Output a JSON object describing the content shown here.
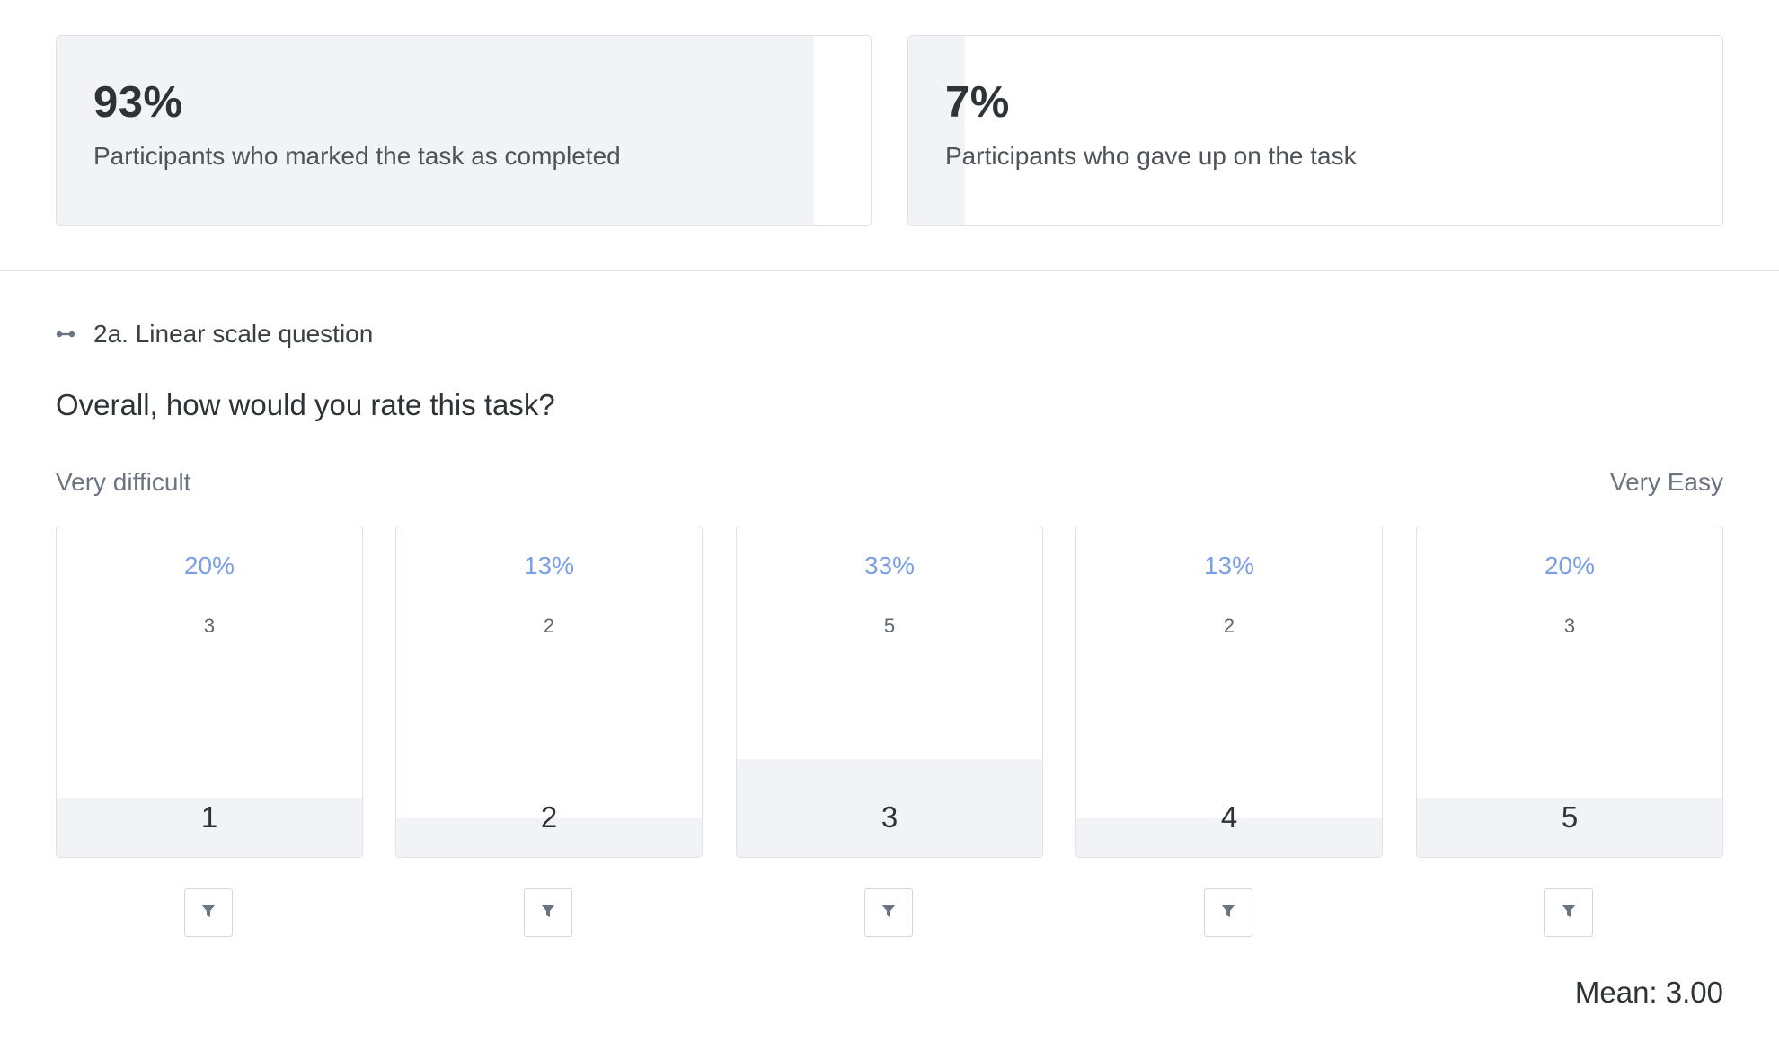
{
  "task_stats": [
    {
      "value": "93%",
      "label": "Participants who marked the task as completed",
      "fraction": 0.93
    },
    {
      "value": "7%",
      "label": "Participants who gave up on the task",
      "fraction": 0.07
    }
  ],
  "question": {
    "type_label": "2a. Linear scale question",
    "icon": "linear-scale-icon",
    "text": "Overall, how would you rate this task?",
    "scale_min_label": "Very difficult",
    "scale_max_label": "Very Easy",
    "options": [
      {
        "label": "1",
        "percent": "20%",
        "count": "3",
        "fraction": 0.2
      },
      {
        "label": "2",
        "percent": "13%",
        "count": "2",
        "fraction": 0.13
      },
      {
        "label": "3",
        "percent": "33%",
        "count": "5",
        "fraction": 0.33
      },
      {
        "label": "4",
        "percent": "13%",
        "count": "2",
        "fraction": 0.13
      },
      {
        "label": "5",
        "percent": "20%",
        "count": "3",
        "fraction": 0.2
      }
    ],
    "filter_icon": "filter-icon",
    "mean_text": "Mean: 3.00"
  },
  "colors": {
    "fill": "#f2f3f6",
    "percent_accent": "#7b9fe6",
    "border": "#dfe1e5"
  }
}
